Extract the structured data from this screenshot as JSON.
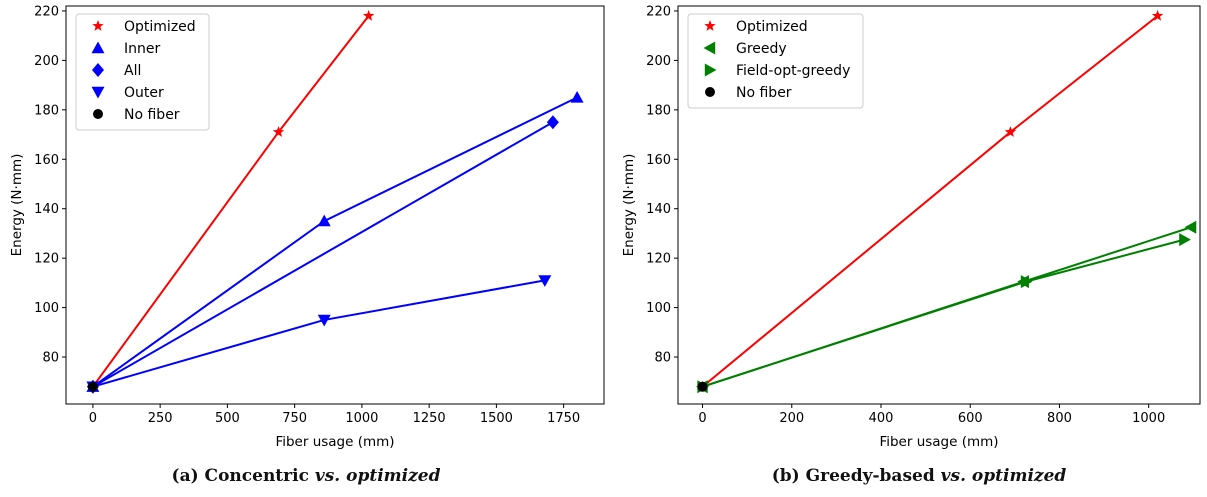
{
  "chart_data": [
    {
      "type": "line",
      "title": "",
      "xlabel": "Fiber usage (mm)",
      "ylabel": "Energy (N·mm)",
      "xlim": [
        -100,
        1900
      ],
      "ylim": [
        61,
        222
      ],
      "xticks": [
        0,
        250,
        500,
        750,
        1000,
        1250,
        1500,
        1750
      ],
      "yticks": [
        80,
        100,
        120,
        140,
        160,
        180,
        200,
        220
      ],
      "grid": false,
      "legend_position": "upper-left",
      "series": [
        {
          "name": "Optimized",
          "marker": "star",
          "color": "#ff0000",
          "x": [
            0,
            690,
            1025
          ],
          "y": [
            68,
            171,
            218
          ]
        },
        {
          "name": "Inner",
          "marker": "triangle-up",
          "color": "#0000ff",
          "x": [
            0,
            860,
            1800
          ],
          "y": [
            68,
            135,
            185
          ]
        },
        {
          "name": "All",
          "marker": "diamond",
          "color": "#0000ff",
          "x": [
            0,
            1710
          ],
          "y": [
            68,
            175
          ]
        },
        {
          "name": "Outer",
          "marker": "triangle-down",
          "color": "#0000ff",
          "x": [
            0,
            860,
            1680
          ],
          "y": [
            68,
            95,
            111
          ]
        },
        {
          "name": "No fiber",
          "marker": "circle",
          "color": "#000000",
          "x": [
            0
          ],
          "y": [
            68
          ]
        }
      ],
      "caption_prefix": "(a) Concentric",
      "caption_emph": "vs. optimized"
    },
    {
      "type": "line",
      "title": "",
      "xlabel": "Fiber usage (mm)",
      "ylabel": "Energy (N·mm)",
      "xlim": [
        -55,
        1115
      ],
      "ylim": [
        61,
        222
      ],
      "xticks": [
        0,
        200,
        400,
        600,
        800,
        1000
      ],
      "yticks": [
        80,
        100,
        120,
        140,
        160,
        180,
        200,
        220
      ],
      "grid": false,
      "legend_position": "upper-left",
      "series": [
        {
          "name": "Optimized",
          "marker": "star",
          "color": "#ff0000",
          "x": [
            0,
            690,
            1020
          ],
          "y": [
            68,
            171,
            218
          ]
        },
        {
          "name": "Greedy",
          "marker": "triangle-left",
          "color": "#008000",
          "x": [
            0,
            720,
            1095
          ],
          "y": [
            68,
            110.5,
            132.5
          ]
        },
        {
          "name": "Field-opt-greedy",
          "marker": "triangle-right",
          "color": "#008000",
          "x": [
            0,
            725,
            1080
          ],
          "y": [
            68,
            110.5,
            127.5
          ]
        },
        {
          "name": "No fiber",
          "marker": "circle",
          "color": "#000000",
          "x": [
            0
          ],
          "y": [
            68
          ]
        }
      ],
      "caption_prefix": "(b) Greedy-based",
      "caption_emph": "vs. optimized"
    }
  ]
}
